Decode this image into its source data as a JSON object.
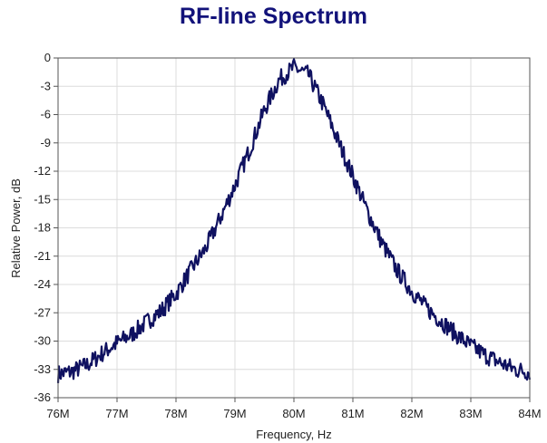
{
  "title": "RF-line Spectrum",
  "colors": {
    "title": "#12127a",
    "series": "#0f1160",
    "grid": "#dcdcdc",
    "axis": "#555555"
  },
  "chart_data": {
    "type": "line",
    "title": "RF-line Spectrum",
    "xlabel": "Frequency, Hz",
    "ylabel": "Relative Power, dB",
    "xlim": [
      76000000,
      84000000
    ],
    "ylim": [
      -36,
      0
    ],
    "grid": true,
    "legend": "none",
    "x_ticks": [
      {
        "value": 76000000,
        "label": "76M"
      },
      {
        "value": 77000000,
        "label": "77M"
      },
      {
        "value": 78000000,
        "label": "78M"
      },
      {
        "value": 79000000,
        "label": "79M"
      },
      {
        "value": 80000000,
        "label": "80M"
      },
      {
        "value": 81000000,
        "label": "81M"
      },
      {
        "value": 82000000,
        "label": "82M"
      },
      {
        "value": 83000000,
        "label": "83M"
      },
      {
        "value": 84000000,
        "label": "84M"
      }
    ],
    "y_ticks": [
      {
        "value": 0,
        "label": "0"
      },
      {
        "value": -3,
        "label": "-3"
      },
      {
        "value": -6,
        "label": "-6"
      },
      {
        "value": -9,
        "label": "-9"
      },
      {
        "value": -12,
        "label": "-12"
      },
      {
        "value": -15,
        "label": "-15"
      },
      {
        "value": -18,
        "label": "-18"
      },
      {
        "value": -21,
        "label": "-21"
      },
      {
        "value": -24,
        "label": "-24"
      },
      {
        "value": -27,
        "label": "-27"
      },
      {
        "value": -30,
        "label": "-30"
      },
      {
        "value": -33,
        "label": "-33"
      },
      {
        "value": -36,
        "label": "-36"
      }
    ],
    "series": [
      {
        "x": [
          76000000,
          76250000,
          76500000,
          76750000,
          77000000,
          77250000,
          77500000,
          77750000,
          78000000,
          78250000,
          78500000,
          78750000,
          79000000,
          79250000,
          79500000,
          79750000,
          80000000,
          80250000,
          80500000,
          80750000,
          81000000,
          81250000,
          81500000,
          81750000,
          82000000,
          82250000,
          82500000,
          82750000,
          83000000,
          83250000,
          83500000,
          83750000,
          84000000
        ],
        "values": [
          -33.5,
          -33.2,
          -32.5,
          -31.3,
          -30.2,
          -29.3,
          -28.0,
          -26.8,
          -25.0,
          -22.5,
          -20.2,
          -17.0,
          -13.5,
          -9.7,
          -5.5,
          -2.3,
          -1.0,
          -1.8,
          -5.0,
          -8.8,
          -12.5,
          -16.3,
          -19.7,
          -22.5,
          -24.7,
          -26.5,
          -27.9,
          -29.3,
          -30.5,
          -31.5,
          -32.3,
          -33.0,
          -33.3
        ]
      }
    ]
  }
}
